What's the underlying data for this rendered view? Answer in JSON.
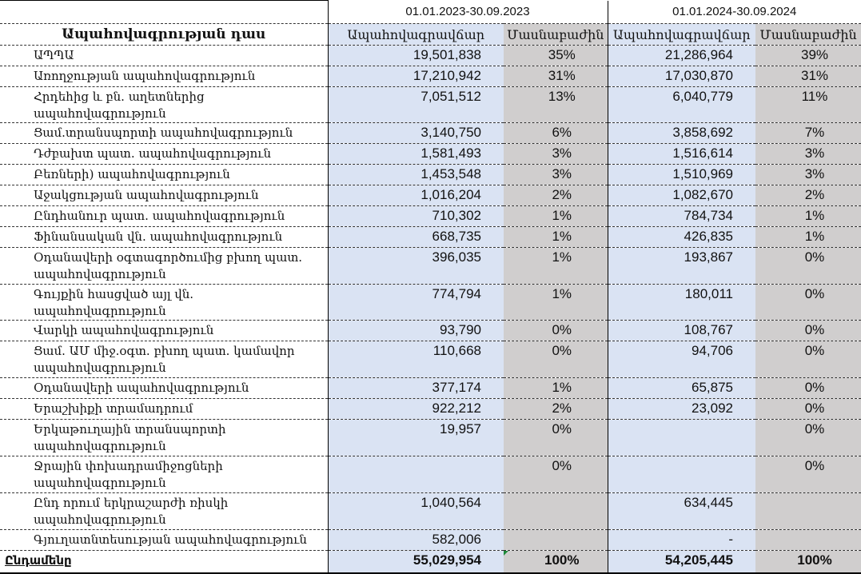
{
  "periods": [
    "01.01.2023-30.09.2023",
    "01.01.2024-30.09.2024"
  ],
  "headers": {
    "class": "Ապահովագրության դաս",
    "premium": "Ապահովագրավճար",
    "share": "Մասնաբաժին"
  },
  "rows": [
    {
      "name": "ԱՊՊԱ",
      "p23": "19,501,838",
      "s23": "35%",
      "p24": "21,286,964",
      "s24": "39%"
    },
    {
      "name": "Առողջության ապահովագրություն",
      "p23": "17,210,942",
      "s23": "31%",
      "p24": "17,030,870",
      "s24": "31%"
    },
    {
      "name": "Հրդեհից և բն. աղետներից ապահովագրություն",
      "p23": "7,051,512",
      "s23": "13%",
      "p24": "6,040,779",
      "s24": "11%"
    },
    {
      "name": "Ցամ.տրանսպորտի ապահովագրություն",
      "p23": "3,140,750",
      "s23": "6%",
      "p24": "3,858,692",
      "s24": "7%"
    },
    {
      "name": "Դժբախտ պատ. ապահովագրություն",
      "p23": "1,581,493",
      "s23": "3%",
      "p24": "1,516,614",
      "s24": "3%"
    },
    {
      "name": "Բեռների) ապահովագրություն",
      "p23": "1,453,548",
      "s23": "3%",
      "p24": "1,510,969",
      "s24": "3%"
    },
    {
      "name": "Աջակցության ապահովագրություն",
      "p23": "1,016,204",
      "s23": "2%",
      "p24": "1,082,670",
      "s24": "2%"
    },
    {
      "name": "Ընդհանուր պատ. ապահովագրություն",
      "p23": "710,302",
      "s23": "1%",
      "p24": "784,734",
      "s24": "1%"
    },
    {
      "name": "Ֆինանսական վն. ապահովագրություն",
      "p23": "668,735",
      "s23": "1%",
      "p24": "426,835",
      "s24": "1%"
    },
    {
      "name": "Օդանավերի օգտագործումից բխող պատ. ապահովագրություն",
      "p23": "396,035",
      "s23": "1%",
      "p24": "193,867",
      "s24": "0%",
      "two": true
    },
    {
      "name": "Գույքին հասցված այլ վն. ապահովագրություն",
      "p23": "774,794",
      "s23": "1%",
      "p24": "180,011",
      "s24": "0%"
    },
    {
      "name": "Վարկի ապահովագրություն",
      "p23": "93,790",
      "s23": "0%",
      "p24": "108,767",
      "s24": "0%"
    },
    {
      "name": "Ցամ. ԱՄ միջ.օգտ. բխող պատ. կամավոր ապահովագրություն",
      "p23": "110,668",
      "s23": "0%",
      "p24": "94,706",
      "s24": "0%",
      "two": true
    },
    {
      "name": "Օդանավերի ապահովագրություն",
      "p23": "377,174",
      "s23": "1%",
      "p24": "65,875",
      "s24": "0%"
    },
    {
      "name": "Երաշխիքի տրամադրում",
      "p23": "922,212",
      "s23": "2%",
      "p24": "23,092",
      "s24": "0%"
    },
    {
      "name": "Երկաթուղային տրանսպորտի ապահովագրություն",
      "p23": "19,957",
      "s23": "0%",
      "p24": "",
      "s24": "0%",
      "two": true
    },
    {
      "name": "Ջրային փոխադրամիջոցների ապահովագրություն",
      "p23": "",
      "s23": "0%",
      "p24": "",
      "s24": "0%",
      "two": true
    },
    {
      "name": "Ընդ որում  երկրաշարժի ռիսկի ապահովագրություն",
      "p23": "1,040,564",
      "s23": "",
      "p24": "634,445",
      "s24": "",
      "two": true
    },
    {
      "name": "Գյուղատնտեսության ապահովագրություն",
      "p23": "582,006",
      "s23": "",
      "p24": "-",
      "s24": ""
    }
  ],
  "total": {
    "name": "Ընդամենը",
    "p23": "55,029,954",
    "s23": "100%",
    "p24": "54,205,445",
    "s24": "100%"
  }
}
